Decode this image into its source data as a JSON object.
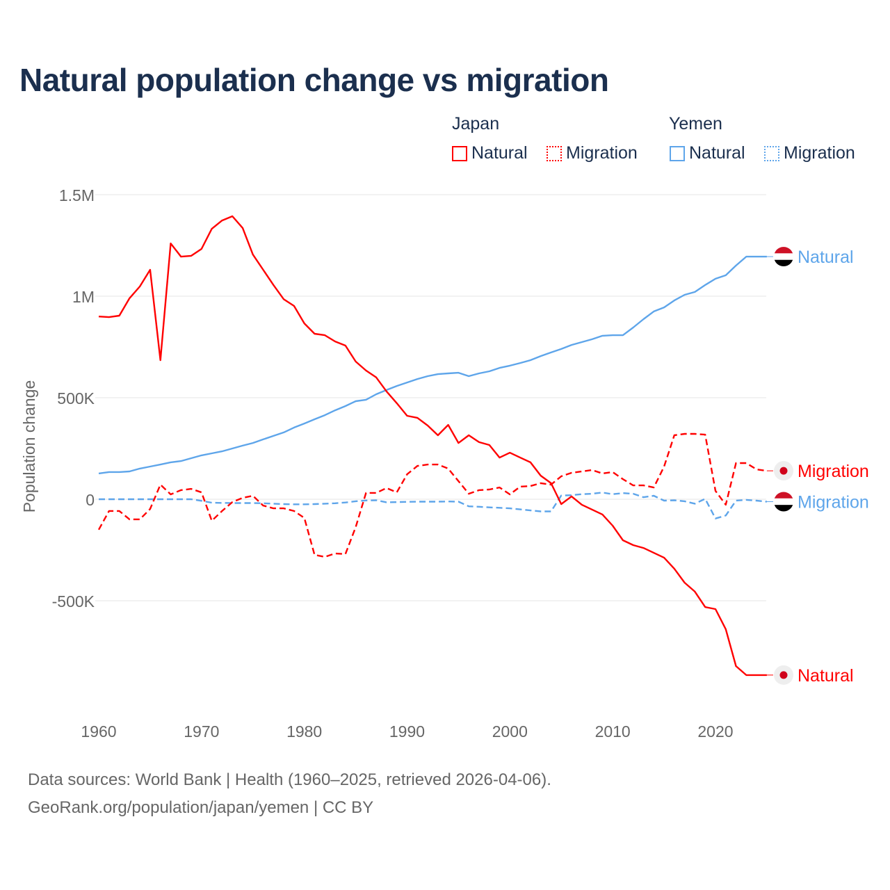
{
  "title": "Natural population change vs migration",
  "legend": {
    "groups": [
      {
        "name": "Japan",
        "items": [
          "Natural",
          "Migration"
        ]
      },
      {
        "name": "Yemen",
        "items": [
          "Natural",
          "Migration"
        ]
      }
    ]
  },
  "footer": {
    "line1": "Data sources: World Bank | Health (1960–2025, retrieved 2026-04-06).",
    "line2": "GeoRank.org/population/japan/yemen | CC BY"
  },
  "colors": {
    "japan": "#ff0000",
    "yemen": "#5ea5ea",
    "grid": "#e6e6e6",
    "axis_text": "#666666"
  },
  "chart_data": {
    "type": "line",
    "title": "Natural population change vs migration",
    "xlabel": "",
    "ylabel": "Population change",
    "xlim": [
      1960,
      2025
    ],
    "ylim": [
      -1000000,
      1500000
    ],
    "x_ticks": [
      1960,
      1970,
      1980,
      1990,
      2000,
      2010,
      2020
    ],
    "y_ticks": [
      {
        "v": 1500000,
        "label": "1.5M"
      },
      {
        "v": 1000000,
        "label": "1M"
      },
      {
        "v": 500000,
        "label": "500K"
      },
      {
        "v": 0,
        "label": "0"
      },
      {
        "v": -500000,
        "label": "-500K"
      }
    ],
    "grid": true,
    "legend_position": "top-right",
    "x_start": 1960,
    "units": "thousands",
    "series": [
      {
        "name": "Japan Natural",
        "country": "japan",
        "style": "solid",
        "end_label": "Natural",
        "values": [
          900,
          897,
          904,
          990,
          1048,
          1130,
          685,
          1260,
          1195,
          1199,
          1233,
          1332,
          1373,
          1394,
          1336,
          1205,
          1130,
          1055,
          985,
          952,
          866,
          815,
          808,
          777,
          757,
          678,
          634,
          600,
          531,
          473,
          411,
          401,
          363,
          315,
          366,
          277,
          315,
          281,
          267,
          205,
          229,
          205,
          182,
          116,
          79,
          -24,
          14,
          -27,
          -51,
          -75,
          -130,
          -202,
          -226,
          -240,
          -264,
          -288,
          -342,
          -411,
          -455,
          -531,
          -541,
          -640,
          -822,
          -866,
          -866,
          -866
        ]
      },
      {
        "name": "Japan Migration",
        "country": "japan",
        "style": "dashed",
        "end_label": "Migration",
        "values": [
          -150,
          -58,
          -58,
          -99,
          -99,
          -48,
          72,
          24,
          45,
          51,
          34,
          -106,
          -58,
          -14,
          7,
          17,
          -31,
          -45,
          -45,
          -58,
          -92,
          -274,
          -284,
          -267,
          -270,
          -137,
          31,
          31,
          55,
          34,
          123,
          164,
          171,
          171,
          151,
          89,
          27,
          45,
          48,
          58,
          24,
          62,
          65,
          79,
          72,
          113,
          130,
          137,
          144,
          127,
          134,
          99,
          68,
          68,
          58,
          161,
          315,
          322,
          322,
          318,
          41,
          -27,
          178,
          178,
          147,
          140
        ]
      },
      {
        "name": "Yemen Natural",
        "country": "yemen",
        "style": "solid",
        "end_label": "Natural",
        "values": [
          127,
          134,
          134,
          137,
          151,
          161,
          171,
          182,
          188,
          202,
          216,
          226,
          236,
          250,
          264,
          277,
          295,
          312,
          329,
          353,
          373,
          394,
          414,
          438,
          459,
          483,
          490,
          517,
          538,
          558,
          575,
          592,
          606,
          616,
          620,
          623,
          606,
          620,
          630,
          647,
          658,
          671,
          685,
          705,
          723,
          740,
          760,
          774,
          788,
          805,
          808,
          808,
          846,
          887,
          925,
          945,
          979,
          1007,
          1021,
          1055,
          1086,
          1103,
          1151,
          1195,
          1195,
          1195
        ]
      },
      {
        "name": "Yemen Migration",
        "country": "yemen",
        "style": "dashed",
        "end_label": "Migration",
        "values": [
          0,
          0,
          0,
          0,
          0,
          0,
          0,
          0,
          0,
          0,
          -8,
          -17,
          -18,
          -19,
          -19,
          -19,
          -20,
          -22,
          -24,
          -25,
          -25,
          -24,
          -22,
          -20,
          -16,
          -10,
          -6,
          -5,
          -15,
          -14,
          -13,
          -12,
          -12,
          -12,
          -11,
          -12,
          -35,
          -37,
          -40,
          -42,
          -45,
          -50,
          -55,
          -60,
          -60,
          18,
          20,
          25,
          27,
          33,
          25,
          30,
          27,
          10,
          17,
          -7,
          -5,
          -10,
          -22,
          2,
          -95,
          -80,
          -7,
          -3,
          -7,
          -12
        ]
      }
    ]
  }
}
